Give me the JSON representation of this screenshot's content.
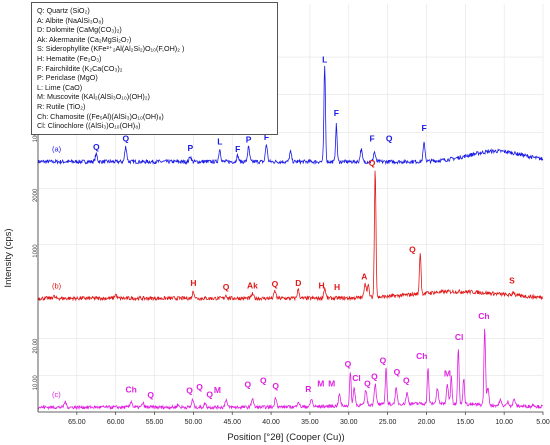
{
  "chart_data": {
    "type": "line",
    "xlabel": "Position [°2θ] (Cooper (Cu))",
    "ylabel": "Intensity (cps)",
    "xlim": [
      70,
      5
    ],
    "x_ticks": [
      "65.00",
      "60.00",
      "55.00",
      "50.00",
      "45.00",
      "40.00",
      "35.00",
      "30.00",
      "25.00",
      "20.00",
      "15.00",
      "10.00",
      "5.00"
    ],
    "legend": [
      "Q: Quartz (SiO₂)",
      "A: Albite (NaAlSi₃O₈)",
      "D: Dolomite (CaMg(CO₃)₂)",
      "Ak: Akermanite (Ca₂MgSi₂O₇)",
      "S: Siderophyllite (KFe²⁺₂Al(Al₂Si₂)O₁₀(F,OH)₂ )",
      "H: Hematite (Fe₂O₃)",
      "F: Fairchildite (K₂Ca(CO₃)₂",
      "P: Periclase (MgO)",
      "L: Lime (CaO)",
      "M: Muscovite (KAl₂(AlSi₃O₁₀)(OH)₂)",
      "R: Rutile (TiO₂)",
      "Ch: Chamosite ((Fe₅Al)(AlSi₃)O₁₀(OH)₈)",
      "Cl: Clinochlore ((AlSi₃)O₁₀(OH)₈)"
    ],
    "colors": {
      "a": "#1a1ae6",
      "b": "#e01919",
      "c": "#e020e0"
    },
    "series": [
      {
        "panel_label": "(a)",
        "y_ticks": [
          "100",
          "200",
          "300"
        ],
        "ylim": [
          0,
          340
        ],
        "baseline": 22,
        "hump": {
          "center": 11,
          "width": 5,
          "height": 28
        },
        "peaks": [
          {
            "x": 62.5,
            "y": 42
          },
          {
            "x": 58.7,
            "y": 62
          },
          {
            "x": 50.4,
            "y": 36
          },
          {
            "x": 46.6,
            "y": 55
          },
          {
            "x": 44.3,
            "y": 38
          },
          {
            "x": 42.9,
            "y": 60
          },
          {
            "x": 40.6,
            "y": 68
          },
          {
            "x": 37.5,
            "y": 48
          },
          {
            "x": 33.1,
            "y": 275
          },
          {
            "x": 31.6,
            "y": 120
          },
          {
            "x": 28.4,
            "y": 55
          },
          {
            "x": 26.7,
            "y": 48
          },
          {
            "x": 20.3,
            "y": 70
          }
        ],
        "annotations": [
          {
            "text": "Q",
            "x": 62.5,
            "y": 45
          },
          {
            "text": "Q",
            "x": 58.7,
            "y": 68
          },
          {
            "text": "P",
            "x": 50.4,
            "y": 42
          },
          {
            "text": "L",
            "x": 46.6,
            "y": 60
          },
          {
            "text": "F",
            "x": 44.3,
            "y": 40
          },
          {
            "text": "P",
            "x": 42.9,
            "y": 65
          },
          {
            "text": "F",
            "x": 40.6,
            "y": 72
          },
          {
            "text": "L",
            "x": 33.1,
            "y": 278
          },
          {
            "text": "F",
            "x": 31.6,
            "y": 135
          },
          {
            "text": "F",
            "x": 27.0,
            "y": 68
          },
          {
            "text": "Q",
            "x": 24.8,
            "y": 68
          },
          {
            "text": "F",
            "x": 20.3,
            "y": 95
          }
        ]
      },
      {
        "panel_label": "(b)",
        "y_ticks": [
          "1000",
          "2000"
        ],
        "ylim": [
          0,
          2300
        ],
        "baseline": 30,
        "hump": {
          "center": 16,
          "width": 8,
          "height": 120
        },
        "peaks": [
          {
            "x": 68.0,
            "y": 70
          },
          {
            "x": 60.0,
            "y": 100
          },
          {
            "x": 50.0,
            "y": 160
          },
          {
            "x": 45.8,
            "y": 90
          },
          {
            "x": 42.4,
            "y": 110
          },
          {
            "x": 39.5,
            "y": 160
          },
          {
            "x": 36.5,
            "y": 190
          },
          {
            "x": 33.1,
            "y": 210
          },
          {
            "x": 27.9,
            "y": 300
          },
          {
            "x": 27.5,
            "y": 240
          },
          {
            "x": 26.6,
            "y": 2330
          },
          {
            "x": 20.8,
            "y": 780
          },
          {
            "x": 8.8,
            "y": 100
          }
        ],
        "annotations": [
          {
            "text": "H",
            "x": 50.0,
            "y": 200
          },
          {
            "text": "Q",
            "x": 45.8,
            "y": 130
          },
          {
            "text": "Ak",
            "x": 42.4,
            "y": 150
          },
          {
            "text": "Q",
            "x": 39.5,
            "y": 180
          },
          {
            "text": "D",
            "x": 36.5,
            "y": 200
          },
          {
            "text": "H",
            "x": 33.5,
            "y": 150
          },
          {
            "text": "H",
            "x": 31.5,
            "y": 130
          },
          {
            "text": "A",
            "x": 28.0,
            "y": 310
          },
          {
            "text": "Q",
            "x": 27.0,
            "y": 2350
          },
          {
            "text": "Q",
            "x": 21.8,
            "y": 800
          },
          {
            "text": "S",
            "x": 9.0,
            "y": 240
          }
        ]
      },
      {
        "panel_label": "(c)",
        "y_ticks": [
          "10.00",
          "20.00"
        ],
        "ylim": [
          0,
          30
        ],
        "baseline": 1.3,
        "hump": {
          "center": 20,
          "width": 11,
          "height": 1.0
        },
        "peaks": [
          {
            "x": 66.5,
            "y": 2.8
          },
          {
            "x": 58.0,
            "y": 3.0
          },
          {
            "x": 56.5,
            "y": 2.4
          },
          {
            "x": 52.0,
            "y": 2.0
          },
          {
            "x": 50.1,
            "y": 3.3
          },
          {
            "x": 48.5,
            "y": 2.4
          },
          {
            "x": 45.8,
            "y": 3.4
          },
          {
            "x": 42.4,
            "y": 3.8
          },
          {
            "x": 39.4,
            "y": 4.0
          },
          {
            "x": 36.5,
            "y": 2.8
          },
          {
            "x": 34.8,
            "y": 3.4
          },
          {
            "x": 31.2,
            "y": 4.5
          },
          {
            "x": 29.8,
            "y": 10.4
          },
          {
            "x": 29.3,
            "y": 6.0
          },
          {
            "x": 27.8,
            "y": 5.5
          },
          {
            "x": 26.6,
            "y": 7.0
          },
          {
            "x": 25.2,
            "y": 11.5
          },
          {
            "x": 23.9,
            "y": 5.4
          },
          {
            "x": 22.5,
            "y": 4.2
          },
          {
            "x": 19.8,
            "y": 10.8
          },
          {
            "x": 18.6,
            "y": 5.5
          },
          {
            "x": 17.3,
            "y": 6.5
          },
          {
            "x": 16.8,
            "y": 9.0
          },
          {
            "x": 15.9,
            "y": 16.6
          },
          {
            "x": 15.2,
            "y": 8.5
          },
          {
            "x": 12.5,
            "y": 22.5
          },
          {
            "x": 12.1,
            "y": 6.0
          },
          {
            "x": 10.5,
            "y": 2.8
          },
          {
            "x": 9.5,
            "y": 2.4
          },
          {
            "x": 8.7,
            "y": 3.2
          },
          {
            "x": 6.2,
            "y": 1.9
          }
        ],
        "annotations": [
          {
            "text": "Ch",
            "x": 58.0,
            "y": 4.5
          },
          {
            "text": "Q",
            "x": 55.5,
            "y": 3.0
          },
          {
            "text": "Q",
            "x": 50.5,
            "y": 4.2
          },
          {
            "text": "Q",
            "x": 49.2,
            "y": 5.2
          },
          {
            "text": "Q",
            "x": 47.9,
            "y": 3.2
          },
          {
            "text": "M",
            "x": 46.9,
            "y": 4.4
          },
          {
            "text": "Q",
            "x": 43.0,
            "y": 5.8
          },
          {
            "text": "Q",
            "x": 41.0,
            "y": 7.0
          },
          {
            "text": "Q",
            "x": 39.4,
            "y": 5.5
          },
          {
            "text": "R",
            "x": 35.2,
            "y": 4.6
          },
          {
            "text": "M",
            "x": 33.6,
            "y": 6.2
          },
          {
            "text": "M",
            "x": 32.2,
            "y": 6.1
          },
          {
            "text": "Q",
            "x": 30.1,
            "y": 11.4
          },
          {
            "text": "Cl",
            "x": 29.0,
            "y": 7.6
          },
          {
            "text": "Q",
            "x": 27.6,
            "y": 6.2
          },
          {
            "text": "Q",
            "x": 26.7,
            "y": 8.0
          },
          {
            "text": "Q",
            "x": 25.6,
            "y": 12.4
          },
          {
            "text": "Q",
            "x": 23.8,
            "y": 9.3
          },
          {
            "text": "Q",
            "x": 22.6,
            "y": 6.9
          },
          {
            "text": "Ch",
            "x": 20.6,
            "y": 13.6
          },
          {
            "text": "M",
            "x": 17.3,
            "y": 8.8
          },
          {
            "text": "Cl",
            "x": 15.8,
            "y": 18.8
          },
          {
            "text": "Ch",
            "x": 12.6,
            "y": 24.5
          }
        ]
      }
    ]
  }
}
